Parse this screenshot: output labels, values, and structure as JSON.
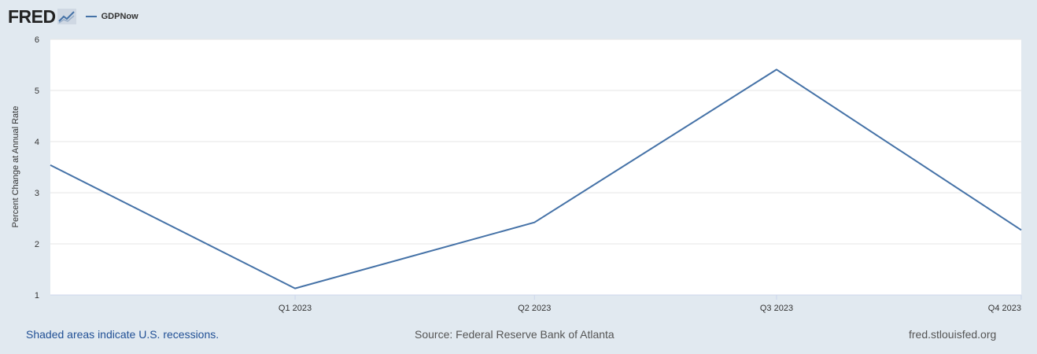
{
  "header": {
    "logo_text": "FRED",
    "logo_icon": "fred-chart-logo-icon",
    "legend_label": "GDPNow"
  },
  "colors": {
    "background": "#e1e9f0",
    "plot_background": "#ffffff",
    "series": "#4572a7",
    "grid": "#e6e6e6",
    "link": "#215095"
  },
  "chart_data": {
    "type": "line",
    "title": "",
    "xlabel": "",
    "ylabel": "Percent Change at Annual Rate",
    "x": [
      "2022-10-01",
      "2023-01-01",
      "2023-04-01",
      "2023-07-01",
      "2023-10-01"
    ],
    "x_tick_labels": [
      "Q1 2023",
      "Q2 2023",
      "Q3 2023",
      "Q4 2023"
    ],
    "ylim": [
      1,
      6
    ],
    "y_ticks": [
      1,
      2,
      3,
      4,
      5,
      6
    ],
    "grid": true,
    "legend_position": "top-left",
    "series": [
      {
        "name": "GDPNow",
        "values": [
          3.54,
          1.13,
          2.42,
          5.41,
          2.27
        ]
      }
    ]
  },
  "footer": {
    "recessions_note": "Shaded areas indicate U.S. recessions.",
    "source": "Source: Federal Reserve Bank of Atlanta",
    "site": "fred.stlouisfed.org"
  }
}
